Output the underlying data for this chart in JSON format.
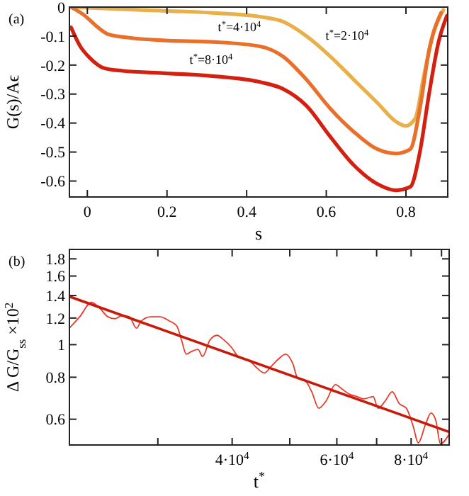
{
  "chart_data": [
    {
      "type": "line",
      "xlabel": "s",
      "ylabel": "G(s)/Aϵ",
      "xlim": [
        -0.045,
        0.905
      ],
      "ylim": [
        -0.655,
        0
      ],
      "xticks": [
        0,
        0.2,
        0.4,
        0.6,
        0.8
      ],
      "yticks": [
        0,
        -0.1,
        -0.2,
        -0.3,
        -0.4,
        -0.5,
        -0.6
      ],
      "annotations": [
        "(a)",
        "t$^{*}$=2·10$^{4}$",
        "t$^{*}$=4·10$^{4}$",
        "t$^{*}$=8·10$^{4}$"
      ],
      "series": [
        {
          "color": "#e8b04a",
          "x": [
            -0.041,
            0.136,
            0.314,
            0.432,
            0.491,
            0.55,
            0.61,
            0.669,
            0.728,
            0.775,
            0.799,
            0.823,
            0.846,
            0.87,
            0.894
          ],
          "values": [
            0,
            -0.01,
            -0.02,
            -0.033,
            -0.05,
            -0.1,
            -0.17,
            -0.25,
            -0.33,
            -0.395,
            -0.41,
            -0.385,
            -0.23,
            -0.085,
            -0.01
          ]
        },
        {
          "color": "#e8702a",
          "x": [
            -0.041,
            -0.006,
            0.018,
            0.053,
            0.101,
            0.195,
            0.314,
            0.432,
            0.491,
            0.55,
            0.61,
            0.669,
            0.728,
            0.775,
            0.811,
            0.835,
            0.858,
            0.888
          ],
          "values": [
            0,
            -0.03,
            -0.06,
            -0.094,
            -0.105,
            -0.115,
            -0.12,
            -0.135,
            -0.17,
            -0.25,
            -0.35,
            -0.43,
            -0.49,
            -0.505,
            -0.49,
            -0.35,
            -0.15,
            -0.02
          ]
        },
        {
          "color": "#d42010",
          "x": [
            -0.041,
            -0.018,
            0.006,
            0.041,
            0.089,
            0.195,
            0.314,
            0.432,
            0.491,
            0.55,
            0.61,
            0.669,
            0.728,
            0.775,
            0.811,
            0.835,
            0.858,
            0.882,
            0.903
          ],
          "values": [
            -0.07,
            -0.135,
            -0.175,
            -0.21,
            -0.22,
            -0.228,
            -0.238,
            -0.258,
            -0.282,
            -0.34,
            -0.447,
            -0.545,
            -0.61,
            -0.632,
            -0.62,
            -0.5,
            -0.3,
            -0.12,
            -0.03
          ]
        }
      ]
    },
    {
      "type": "line",
      "log": "xy",
      "xlabel": "t$^{*}$",
      "ylabel": "Δ G/G$_{ss}$ ×10$^{2}$",
      "xlim": [
        21300,
        92700
      ],
      "ylim": [
        0.503,
        1.92
      ],
      "xticks": [
        {
          "value": 30000,
          "label": null
        },
        {
          "value": 40000,
          "label": "4·10$^{4}$"
        },
        {
          "value": 50000,
          "label": null
        },
        {
          "value": 60000,
          "label": "6·10$^{4}$"
        },
        {
          "value": 70000,
          "label": null
        },
        {
          "value": 80000,
          "label": "8·10$^{4}$"
        },
        {
          "value": 90000,
          "label": null
        }
      ],
      "yticks": [
        0.6,
        0.8,
        1,
        1.2,
        1.4,
        1.6,
        1.8
      ],
      "annotations": [
        "(b)"
      ],
      "series": [
        {
          "color": "#e83a2a",
          "x": [
            21300,
            22160,
            23200,
            23850,
            24730,
            25420,
            26130,
            26870,
            27620,
            28130,
            29170,
            30260,
            31400,
            32270,
            32880,
            33490,
            34090,
            35040,
            35680,
            36690,
            37720,
            38760,
            39850,
            40960,
            41710,
            42870,
            44070,
            45310,
            46580,
            47880,
            49210,
            50590,
            51530,
            52960,
            54440,
            55960,
            57520,
            59670,
            61330,
            63040,
            64800,
            66600,
            69080,
            70360,
            72320,
            74340,
            76410,
            78540,
            80730,
            82230,
            84530,
            86400,
            88000,
            89640,
            92640
          ],
          "values": [
            1.12,
            1.21,
            1.337,
            1.294,
            1.21,
            1.194,
            1.221,
            1.21,
            1.12,
            1.175,
            1.21,
            1.21,
            1.175,
            1.138,
            1.032,
            0.937,
            0.952,
            0.968,
            0.922,
            1.032,
            1.066,
            1.032,
            0.984,
            0.922,
            0.907,
            0.893,
            0.851,
            0.824,
            0.864,
            0.907,
            0.937,
            0.878,
            0.797,
            0.785,
            0.724,
            0.647,
            0.679,
            0.76,
            0.736,
            0.712,
            0.701,
            0.69,
            0.701,
            0.647,
            0.679,
            0.724,
            0.668,
            0.647,
            0.568,
            0.51,
            0.577,
            0.626,
            0.596,
            0.507,
            0.541
          ]
        },
        {
          "color": "#c81a0a",
          "x": [
            21300,
            92700
          ],
          "values": [
            1.39,
            0.55
          ]
        }
      ]
    }
  ]
}
